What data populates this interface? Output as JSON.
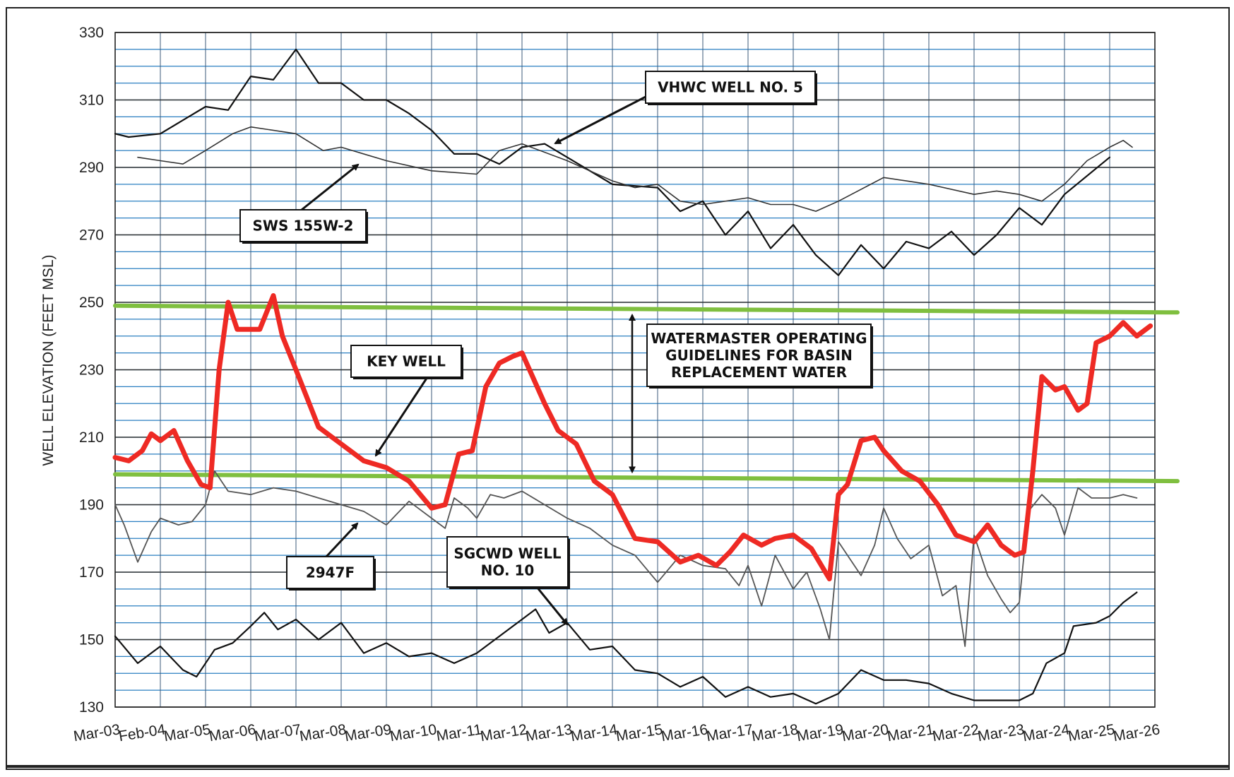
{
  "chart_data": {
    "type": "line",
    "ylabel": "WELL ELEVATION (FEET MSL)",
    "ylim": [
      130,
      330
    ],
    "y_ticks": [
      130,
      150,
      170,
      190,
      210,
      230,
      250,
      270,
      290,
      310,
      330
    ],
    "x_tick_labels": [
      "Mar-03",
      "Feb-04",
      "Mar-05",
      "Mar-06",
      "Mar-07",
      "Mar-08",
      "Mar-09",
      "Mar-10",
      "Mar-11",
      "Mar-12",
      "Mar-13",
      "Mar-14",
      "Mar-15",
      "Mar-16",
      "Mar-17",
      "Mar-18",
      "Mar-19",
      "Mar-20",
      "Mar-21",
      "Mar-22",
      "Mar-23",
      "Mar-24",
      "Mar-25",
      "Mar-26"
    ],
    "grid": true,
    "series": [
      {
        "name": "VHWC WELL NO. 5",
        "color": "#111111",
        "points": [
          [
            0,
            300
          ],
          [
            0.3,
            299
          ],
          [
            1,
            300
          ],
          [
            2,
            308
          ],
          [
            2.5,
            307
          ],
          [
            3,
            317
          ],
          [
            3.5,
            316
          ],
          [
            4,
            325
          ],
          [
            4.5,
            315
          ],
          [
            5,
            315
          ],
          [
            5.5,
            310
          ],
          [
            6,
            310
          ],
          [
            6.5,
            306
          ],
          [
            7,
            301
          ],
          [
            7.5,
            294
          ],
          [
            8,
            294
          ],
          [
            8.5,
            291
          ],
          [
            9,
            296
          ],
          [
            9.5,
            297
          ],
          [
            10,
            293
          ],
          [
            11,
            285
          ],
          [
            12,
            284
          ],
          [
            12.5,
            277
          ],
          [
            13,
            280
          ],
          [
            13.5,
            270
          ],
          [
            14,
            277
          ],
          [
            14.5,
            266
          ],
          [
            15,
            273
          ],
          [
            15.5,
            264
          ],
          [
            16,
            258
          ],
          [
            16.5,
            267
          ],
          [
            17,
            260
          ],
          [
            17.5,
            268
          ],
          [
            18,
            266
          ],
          [
            18.5,
            271
          ],
          [
            19,
            264
          ],
          [
            19.5,
            270
          ],
          [
            20,
            278
          ],
          [
            20.5,
            273
          ],
          [
            21,
            282
          ],
          [
            22,
            293
          ]
        ]
      },
      {
        "name": "SWS 155W-2",
        "color": "#333333",
        "points": [
          [
            0.5,
            293
          ],
          [
            1,
            292
          ],
          [
            1.5,
            291
          ],
          [
            2,
            295
          ],
          [
            2.6,
            300
          ],
          [
            3,
            302
          ],
          [
            4,
            300
          ],
          [
            4.6,
            295
          ],
          [
            5,
            296
          ],
          [
            6,
            292
          ],
          [
            7,
            289
          ],
          [
            8,
            288
          ],
          [
            8.5,
            295
          ],
          [
            9,
            297
          ],
          [
            10,
            292
          ],
          [
            11,
            286
          ],
          [
            11.5,
            284
          ],
          [
            12,
            285
          ],
          [
            12.5,
            280
          ],
          [
            13,
            279
          ],
          [
            14,
            281
          ],
          [
            14.5,
            279
          ],
          [
            15,
            279
          ],
          [
            15.5,
            277
          ],
          [
            16,
            280
          ],
          [
            17,
            287
          ],
          [
            17.5,
            286
          ],
          [
            18,
            285
          ],
          [
            19,
            282
          ],
          [
            19.5,
            283
          ],
          [
            20,
            282
          ],
          [
            20.5,
            280
          ],
          [
            21,
            285
          ],
          [
            21.5,
            292
          ],
          [
            22,
            296
          ],
          [
            22.3,
            298
          ],
          [
            22.5,
            296
          ]
        ]
      },
      {
        "name": "KEY WELL",
        "color": "#ee2a24",
        "points": [
          [
            0,
            204
          ],
          [
            0.3,
            203
          ],
          [
            0.6,
            206
          ],
          [
            0.8,
            211
          ],
          [
            1,
            209
          ],
          [
            1.3,
            212
          ],
          [
            1.6,
            203
          ],
          [
            1.9,
            196
          ],
          [
            2.1,
            195
          ],
          [
            2.3,
            230
          ],
          [
            2.5,
            250
          ],
          [
            2.7,
            242
          ],
          [
            3.2,
            242
          ],
          [
            3.5,
            252
          ],
          [
            3.7,
            240
          ],
          [
            4,
            230
          ],
          [
            4.5,
            213
          ],
          [
            5,
            208
          ],
          [
            5.5,
            203
          ],
          [
            6,
            201
          ],
          [
            6.5,
            197
          ],
          [
            7,
            189
          ],
          [
            7.3,
            190
          ],
          [
            7.6,
            205
          ],
          [
            7.9,
            206
          ],
          [
            8.2,
            225
          ],
          [
            8.5,
            232
          ],
          [
            8.8,
            234
          ],
          [
            9,
            235
          ],
          [
            9.5,
            220
          ],
          [
            9.8,
            212
          ],
          [
            10.2,
            208
          ],
          [
            10.6,
            197
          ],
          [
            11,
            193
          ],
          [
            11.5,
            180
          ],
          [
            12,
            179
          ],
          [
            12.5,
            173
          ],
          [
            12.9,
            175
          ],
          [
            13.3,
            172
          ],
          [
            13.6,
            176
          ],
          [
            13.9,
            181
          ],
          [
            14.3,
            178
          ],
          [
            14.6,
            180
          ],
          [
            15,
            181
          ],
          [
            15.4,
            177
          ],
          [
            15.8,
            168
          ],
          [
            16,
            193
          ],
          [
            16.2,
            196
          ],
          [
            16.5,
            209
          ],
          [
            16.8,
            210
          ],
          [
            17,
            206
          ],
          [
            17.4,
            200
          ],
          [
            17.8,
            197
          ],
          [
            18.2,
            190
          ],
          [
            18.6,
            181
          ],
          [
            19,
            179
          ],
          [
            19.3,
            184
          ],
          [
            19.6,
            178
          ],
          [
            19.9,
            175
          ],
          [
            20.1,
            176
          ],
          [
            20.3,
            200
          ],
          [
            20.5,
            228
          ],
          [
            20.8,
            224
          ],
          [
            21,
            225
          ],
          [
            21.3,
            218
          ],
          [
            21.5,
            220
          ],
          [
            21.7,
            238
          ],
          [
            22,
            240
          ],
          [
            22.3,
            244
          ],
          [
            22.6,
            240
          ],
          [
            22.9,
            243
          ]
        ]
      },
      {
        "name": "2947F",
        "color": "#555555",
        "points": [
          [
            0,
            190
          ],
          [
            0.2,
            184
          ],
          [
            0.5,
            173
          ],
          [
            0.8,
            182
          ],
          [
            1,
            186
          ],
          [
            1.4,
            184
          ],
          [
            1.7,
            185
          ],
          [
            2,
            190
          ],
          [
            2.2,
            200
          ],
          [
            2.5,
            194
          ],
          [
            3,
            193
          ],
          [
            3.5,
            195
          ],
          [
            4,
            194
          ],
          [
            4.5,
            192
          ],
          [
            5,
            190
          ],
          [
            5.5,
            188
          ],
          [
            6,
            184
          ],
          [
            6.5,
            191
          ],
          [
            7,
            186
          ],
          [
            7.3,
            183
          ],
          [
            7.5,
            192
          ],
          [
            7.8,
            189
          ],
          [
            8,
            186
          ],
          [
            8.3,
            193
          ],
          [
            8.6,
            192
          ],
          [
            9,
            194
          ],
          [
            9.5,
            190
          ],
          [
            10,
            186
          ],
          [
            10.5,
            183
          ],
          [
            11,
            178
          ],
          [
            11.5,
            175
          ],
          [
            12,
            167
          ],
          [
            12.5,
            175
          ],
          [
            13,
            172
          ],
          [
            13.5,
            171
          ],
          [
            13.8,
            166
          ],
          [
            14,
            172
          ],
          [
            14.3,
            160
          ],
          [
            14.6,
            175
          ],
          [
            15,
            165
          ],
          [
            15.3,
            170
          ],
          [
            15.6,
            159
          ],
          [
            15.8,
            150
          ],
          [
            16,
            179
          ],
          [
            16.5,
            169
          ],
          [
            16.8,
            178
          ],
          [
            17,
            189
          ],
          [
            17.3,
            180
          ],
          [
            17.6,
            174
          ],
          [
            18,
            178
          ],
          [
            18.3,
            163
          ],
          [
            18.6,
            166
          ],
          [
            18.8,
            148
          ],
          [
            19,
            181
          ],
          [
            19.3,
            169
          ],
          [
            19.6,
            162
          ],
          [
            19.8,
            158
          ],
          [
            20,
            161
          ],
          [
            20.2,
            188
          ],
          [
            20.5,
            193
          ],
          [
            20.8,
            189
          ],
          [
            21,
            181
          ],
          [
            21.3,
            195
          ],
          [
            21.6,
            192
          ],
          [
            22,
            192
          ],
          [
            22.3,
            193
          ],
          [
            22.6,
            192
          ]
        ]
      },
      {
        "name": "SGCWD WELL NO. 10",
        "color": "#111111",
        "points": [
          [
            0,
            151
          ],
          [
            0.5,
            143
          ],
          [
            1,
            148
          ],
          [
            1.5,
            141
          ],
          [
            1.8,
            139
          ],
          [
            2.2,
            147
          ],
          [
            2.6,
            149
          ],
          [
            3,
            154
          ],
          [
            3.3,
            158
          ],
          [
            3.6,
            153
          ],
          [
            4,
            156
          ],
          [
            4.5,
            150
          ],
          [
            5,
            155
          ],
          [
            5.5,
            146
          ],
          [
            6,
            149
          ],
          [
            6.5,
            145
          ],
          [
            7,
            146
          ],
          [
            7.5,
            143
          ],
          [
            8,
            146
          ],
          [
            8.5,
            151
          ],
          [
            9,
            156
          ],
          [
            9.3,
            159
          ],
          [
            9.6,
            152
          ],
          [
            10,
            155
          ],
          [
            10.5,
            147
          ],
          [
            11,
            148
          ],
          [
            11.5,
            141
          ],
          [
            12,
            140
          ],
          [
            12.5,
            136
          ],
          [
            13,
            139
          ],
          [
            13.5,
            133
          ],
          [
            14,
            136
          ],
          [
            14.5,
            133
          ],
          [
            15,
            134
          ],
          [
            15.5,
            131
          ],
          [
            16,
            134
          ],
          [
            16.5,
            141
          ],
          [
            17,
            138
          ],
          [
            17.5,
            138
          ],
          [
            18,
            137
          ],
          [
            18.5,
            134
          ],
          [
            19,
            132
          ],
          [
            19.5,
            132
          ],
          [
            20,
            132
          ],
          [
            20.3,
            134
          ],
          [
            20.6,
            143
          ],
          [
            21,
            146
          ],
          [
            21.2,
            154
          ],
          [
            21.7,
            155
          ],
          [
            22,
            157
          ],
          [
            22.3,
            161
          ],
          [
            22.6,
            164
          ]
        ]
      },
      {
        "name": "GUIDELINE UPPER",
        "color": "#7fbf3f",
        "points": [
          [
            0,
            249
          ],
          [
            23.5,
            247
          ]
        ]
      },
      {
        "name": "GUIDELINE LOWER",
        "color": "#7fbf3f",
        "points": [
          [
            0,
            199
          ],
          [
            23.5,
            197
          ]
        ]
      }
    ],
    "annotations": [
      {
        "name": "VHWC WELL NO. 5",
        "lines": [
          "VHWC WELL NO. 5"
        ]
      },
      {
        "name": "SWS 155W-2",
        "lines": [
          "SWS 155W-2"
        ]
      },
      {
        "name": "KEY WELL",
        "lines": [
          "KEY WELL"
        ]
      },
      {
        "name": "2947F",
        "lines": [
          "2947F"
        ]
      },
      {
        "name": "SGCWD WELL NO. 10",
        "lines": [
          "SGCWD WELL",
          "NO. 10"
        ]
      },
      {
        "name": "WATERMASTER",
        "lines": [
          "WATERMASTER OPERATING",
          "GUIDELINES FOR BASIN",
          "REPLACEMENT WATER"
        ]
      }
    ]
  }
}
